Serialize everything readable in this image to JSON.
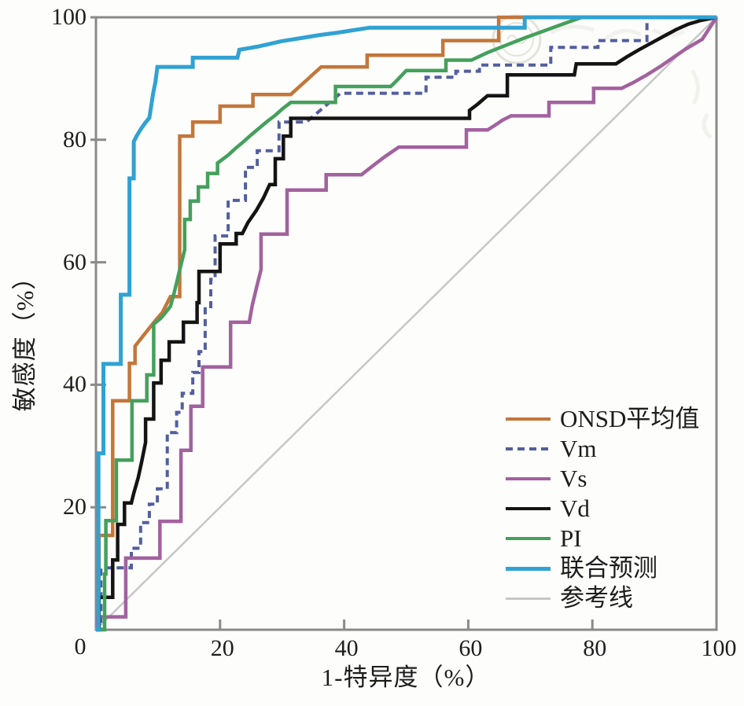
{
  "chart_data": {
    "type": "line",
    "subtype": "roc-curves",
    "title": "",
    "xlabel": "1-特异度（%）",
    "ylabel": "敏感度（%）",
    "xlim": [
      0,
      100
    ],
    "ylim": [
      0,
      100
    ],
    "xticks": [
      20,
      40,
      60,
      80,
      100
    ],
    "yticks": [
      20,
      40,
      60,
      80,
      100
    ],
    "origin_label": "0",
    "grid": false,
    "legend_position": "inside lower right",
    "series": [
      {
        "name": "ONSD平均值",
        "color": "#c4763a",
        "style": "solid",
        "points": [
          [
            0,
            0
          ],
          [
            0.5,
            0
          ],
          [
            0.5,
            15.4
          ],
          [
            2.7,
            15.4
          ],
          [
            2.7,
            37.4
          ],
          [
            5.4,
            37.4
          ],
          [
            5.4,
            43.5
          ],
          [
            6.3,
            43.5
          ],
          [
            6.3,
            46.3
          ],
          [
            7.3,
            47.6
          ],
          [
            8.4,
            49
          ],
          [
            9.5,
            50.4
          ],
          [
            10.7,
            51.8
          ],
          [
            12,
            54.4
          ],
          [
            13.5,
            54.4
          ],
          [
            13.5,
            80.6
          ],
          [
            15.6,
            80.6
          ],
          [
            15.6,
            82.9
          ],
          [
            20,
            82.9
          ],
          [
            20,
            85.5
          ],
          [
            25.3,
            85.5
          ],
          [
            25.3,
            87.4
          ],
          [
            31.4,
            87.4
          ],
          [
            32.6,
            88.5
          ],
          [
            33.8,
            89.6
          ],
          [
            35,
            90.7
          ],
          [
            36.3,
            91.9
          ],
          [
            43.7,
            91.9
          ],
          [
            43.7,
            93.8
          ],
          [
            55.9,
            93.8
          ],
          [
            55.9,
            96.2
          ],
          [
            64.9,
            96.2
          ],
          [
            64.9,
            100
          ],
          [
            100,
            100
          ]
        ]
      },
      {
        "name": "Vm",
        "color": "#525e9f",
        "style": "dashed",
        "points": [
          [
            0,
            0
          ],
          [
            0.8,
            0
          ],
          [
            0.8,
            10.1
          ],
          [
            5.7,
            10.1
          ],
          [
            5.7,
            13.3
          ],
          [
            7.2,
            13.3
          ],
          [
            7.2,
            17.5
          ],
          [
            8.6,
            17.5
          ],
          [
            8.6,
            20.5
          ],
          [
            9.9,
            20.5
          ],
          [
            9.9,
            23
          ],
          [
            11.5,
            23
          ],
          [
            11.5,
            32.2
          ],
          [
            13,
            32.2
          ],
          [
            13,
            35.5
          ],
          [
            13.9,
            35.5
          ],
          [
            13.9,
            38.6
          ],
          [
            15.6,
            38.6
          ],
          [
            15.6,
            42
          ],
          [
            16.6,
            42
          ],
          [
            16.6,
            45.4
          ],
          [
            17.6,
            45.4
          ],
          [
            17.6,
            52.4
          ],
          [
            18.5,
            52.4
          ],
          [
            18.5,
            57.2
          ],
          [
            19.2,
            57.2
          ],
          [
            19.2,
            64.3
          ],
          [
            21.3,
            64.3
          ],
          [
            21.3,
            70.1
          ],
          [
            24.1,
            70.1
          ],
          [
            24.1,
            75.5
          ],
          [
            26,
            75.5
          ],
          [
            26,
            78.2
          ],
          [
            29.5,
            78.2
          ],
          [
            29.5,
            82.9
          ],
          [
            33.9,
            82.9
          ],
          [
            35.2,
            84
          ],
          [
            36.6,
            85.2
          ],
          [
            38,
            86.4
          ],
          [
            39.4,
            87.6
          ],
          [
            53.2,
            87.6
          ],
          [
            53.2,
            90.2
          ],
          [
            58,
            90.2
          ],
          [
            58,
            91.2
          ],
          [
            61.8,
            91.2
          ],
          [
            61.8,
            92.2
          ],
          [
            73.3,
            92.2
          ],
          [
            73.3,
            95.1
          ],
          [
            80.9,
            95.1
          ],
          [
            80.9,
            96.2
          ],
          [
            88.8,
            96.2
          ],
          [
            88.8,
            100
          ],
          [
            100,
            100
          ]
        ]
      },
      {
        "name": "Vs",
        "color": "#a2619f",
        "style": "solid",
        "points": [
          [
            0,
            0
          ],
          [
            0.3,
            0
          ],
          [
            0.3,
            2.1
          ],
          [
            4.8,
            2.1
          ],
          [
            4.8,
            11.7
          ],
          [
            10.3,
            11.7
          ],
          [
            10.3,
            17.7
          ],
          [
            13.7,
            17.7
          ],
          [
            13.7,
            29.3
          ],
          [
            15.3,
            29.3
          ],
          [
            15.3,
            36.5
          ],
          [
            17.2,
            36.5
          ],
          [
            17.2,
            42.9
          ],
          [
            21.7,
            42.9
          ],
          [
            21.7,
            50.2
          ],
          [
            24.7,
            50.2
          ],
          [
            25.2,
            53
          ],
          [
            25.9,
            56
          ],
          [
            26.6,
            58.8
          ],
          [
            26.6,
            64.6
          ],
          [
            30.8,
            64.6
          ],
          [
            30.8,
            71.8
          ],
          [
            37.1,
            71.8
          ],
          [
            37.1,
            74.3
          ],
          [
            42.8,
            74.3
          ],
          [
            44.3,
            75.5
          ],
          [
            46.5,
            77.2
          ],
          [
            48.8,
            78.8
          ],
          [
            59.7,
            78.8
          ],
          [
            59.7,
            81.6
          ],
          [
            63.1,
            81.6
          ],
          [
            64.2,
            82.3
          ],
          [
            65.5,
            83.2
          ],
          [
            66.9,
            83.9
          ],
          [
            73,
            83.9
          ],
          [
            73,
            86.1
          ],
          [
            80.2,
            86.1
          ],
          [
            80.2,
            88.4
          ],
          [
            84.7,
            88.4
          ],
          [
            86.5,
            89.3
          ],
          [
            88.8,
            90.6
          ],
          [
            91,
            92
          ],
          [
            93,
            93.4
          ],
          [
            95,
            94.8
          ],
          [
            97.7,
            96.4
          ],
          [
            100,
            100
          ]
        ]
      },
      {
        "name": "Vd",
        "color": "#141414",
        "style": "solid",
        "points": [
          [
            0,
            0
          ],
          [
            0.5,
            0
          ],
          [
            0.5,
            5.3
          ],
          [
            2.7,
            5.3
          ],
          [
            2.7,
            11.4
          ],
          [
            3.5,
            11.4
          ],
          [
            3.5,
            17.2
          ],
          [
            4.6,
            17.2
          ],
          [
            4.6,
            20.7
          ],
          [
            5.7,
            20.7
          ],
          [
            6.1,
            22.3
          ],
          [
            6.8,
            24.8
          ],
          [
            7.4,
            27.6
          ],
          [
            8,
            30.6
          ],
          [
            8,
            34.4
          ],
          [
            9.3,
            34.4
          ],
          [
            9.3,
            40.3
          ],
          [
            10.5,
            40.3
          ],
          [
            10.5,
            44
          ],
          [
            11.8,
            44
          ],
          [
            11.8,
            47
          ],
          [
            14.1,
            47
          ],
          [
            14.1,
            50.2
          ],
          [
            16.3,
            50.2
          ],
          [
            16.3,
            53.4
          ],
          [
            16.6,
            53.4
          ],
          [
            16.6,
            58.5
          ],
          [
            20,
            58.5
          ],
          [
            20,
            63
          ],
          [
            22.6,
            63
          ],
          [
            22.6,
            64.7
          ],
          [
            23.6,
            64.7
          ],
          [
            24.5,
            66.5
          ],
          [
            25.8,
            68.4
          ],
          [
            27,
            70.5
          ],
          [
            28,
            72.7
          ],
          [
            28.9,
            72.7
          ],
          [
            28.9,
            76.9
          ],
          [
            30.2,
            76.9
          ],
          [
            30.2,
            80.6
          ],
          [
            31.4,
            80.6
          ],
          [
            31.4,
            83.5
          ],
          [
            60.2,
            83.5
          ],
          [
            60.2,
            84.8
          ],
          [
            61.5,
            85.8
          ],
          [
            63.1,
            87.2
          ],
          [
            66.3,
            87.2
          ],
          [
            66.3,
            90.6
          ],
          [
            77.1,
            90.6
          ],
          [
            77.4,
            92.4
          ],
          [
            83.8,
            92.4
          ],
          [
            85.5,
            93.5
          ],
          [
            87.5,
            94.7
          ],
          [
            89.5,
            95.8
          ],
          [
            91.5,
            96.9
          ],
          [
            93.5,
            98
          ],
          [
            95.5,
            98.9
          ],
          [
            97.5,
            99.5
          ],
          [
            100,
            100
          ]
        ]
      },
      {
        "name": "PI",
        "color": "#44a05c",
        "style": "solid",
        "points": [
          [
            0,
            0
          ],
          [
            1.4,
            0
          ],
          [
            1.4,
            9.1
          ],
          [
            1.6,
            9.1
          ],
          [
            1.6,
            17.8
          ],
          [
            3.3,
            17.8
          ],
          [
            3.3,
            27.7
          ],
          [
            5.8,
            27.7
          ],
          [
            5.8,
            37.4
          ],
          [
            8.2,
            37.4
          ],
          [
            8.2,
            41.6
          ],
          [
            9.3,
            41.6
          ],
          [
            9.3,
            49.9
          ],
          [
            10.5,
            50.9
          ],
          [
            11.3,
            51.9
          ],
          [
            12,
            52.8
          ],
          [
            12.6,
            55
          ],
          [
            13.2,
            57.5
          ],
          [
            13.8,
            60
          ],
          [
            14.3,
            62
          ],
          [
            14.3,
            67
          ],
          [
            15.2,
            67
          ],
          [
            15.2,
            70
          ],
          [
            16.5,
            70
          ],
          [
            16.5,
            72.3
          ],
          [
            18,
            72.3
          ],
          [
            18,
            74.5
          ],
          [
            19.6,
            74.5
          ],
          [
            19.6,
            76.2
          ],
          [
            21.3,
            77.5
          ],
          [
            22.5,
            78.6
          ],
          [
            23.8,
            79.7
          ],
          [
            25,
            80.8
          ],
          [
            26.3,
            81.9
          ],
          [
            27.6,
            83
          ],
          [
            28.9,
            84
          ],
          [
            30.1,
            85.1
          ],
          [
            31.4,
            86.1
          ],
          [
            38.6,
            86.1
          ],
          [
            38.6,
            88.7
          ],
          [
            47.5,
            88.7
          ],
          [
            48.7,
            89.9
          ],
          [
            50,
            91.3
          ],
          [
            56.4,
            91.3
          ],
          [
            56.4,
            93
          ],
          [
            60.5,
            93
          ],
          [
            63,
            94.2
          ],
          [
            66,
            95.4
          ],
          [
            69,
            96.6
          ],
          [
            72,
            97.7
          ],
          [
            75,
            98.8
          ],
          [
            78.3,
            100
          ],
          [
            100,
            100
          ]
        ]
      },
      {
        "name": "联合预测",
        "color": "#30a2d3",
        "style": "solid",
        "points": [
          [
            0,
            0
          ],
          [
            0.4,
            0
          ],
          [
            0.4,
            28.8
          ],
          [
            1.2,
            28.8
          ],
          [
            1.2,
            43.4
          ],
          [
            4,
            43.4
          ],
          [
            4,
            54.7
          ],
          [
            5.4,
            54.7
          ],
          [
            5.4,
            73.7
          ],
          [
            6.1,
            73.7
          ],
          [
            6.1,
            79.7
          ],
          [
            6.6,
            80.7
          ],
          [
            7.2,
            81.7
          ],
          [
            7.9,
            82.7
          ],
          [
            8.6,
            83.6
          ],
          [
            8.9,
            85.5
          ],
          [
            9.2,
            87.5
          ],
          [
            9.6,
            89.5
          ],
          [
            9.9,
            91.9
          ],
          [
            15.6,
            91.9
          ],
          [
            15.6,
            93.4
          ],
          [
            22.8,
            93.4
          ],
          [
            23.1,
            94.7
          ],
          [
            26,
            95.2
          ],
          [
            29.9,
            96.1
          ],
          [
            33,
            96.6
          ],
          [
            36,
            97.1
          ],
          [
            39,
            97.5
          ],
          [
            41.5,
            97.9
          ],
          [
            44.1,
            98.3
          ],
          [
            69.1,
            98.3
          ],
          [
            69.1,
            100
          ],
          [
            100,
            100
          ]
        ]
      },
      {
        "name": "参考线",
        "color": "#c7c7c7",
        "style": "solid",
        "points": [
          [
            0,
            0
          ],
          [
            100,
            100
          ]
        ]
      }
    ]
  },
  "axis": {
    "frame_color": "#8a8a8a",
    "tick_color": "#8a8a8a",
    "label_color": "#1e1e1e"
  },
  "watermark": {
    "description": "faint circular journal stamp, illegible",
    "color": "#cfcfc5"
  }
}
